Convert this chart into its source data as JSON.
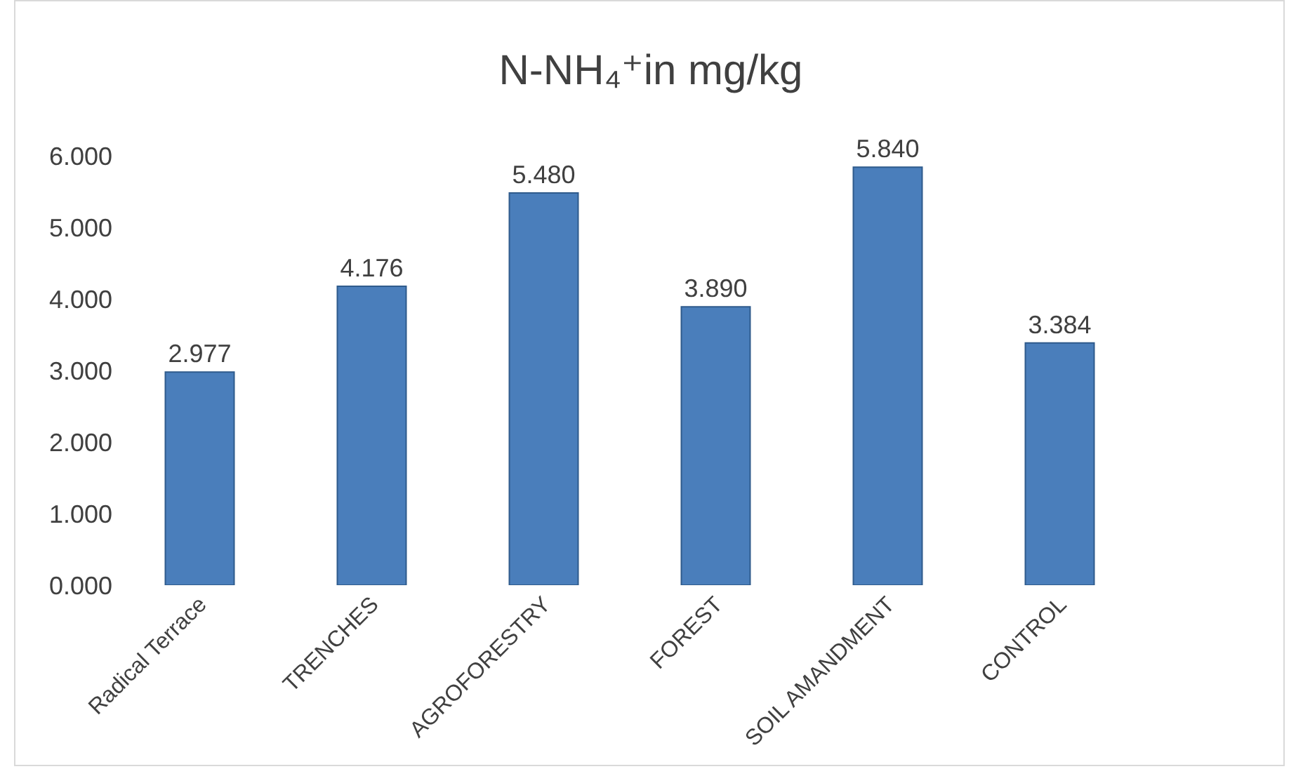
{
  "chart_data": {
    "type": "bar",
    "title": "N-NH₄⁺in mg/kg",
    "categories": [
      "Radical Terrace",
      "TRENCHES",
      "AGROFORESTRY",
      "FOREST",
      "SOIL AMANDMENT",
      "CONTROL"
    ],
    "values": [
      2.977,
      4.176,
      5.48,
      3.89,
      5.84,
      3.384
    ],
    "value_labels": [
      "2.977",
      "4.176",
      "5.480",
      "3.890",
      "5.840",
      "3.384"
    ],
    "color": "#4a7ebb",
    "ylim": [
      0,
      6
    ],
    "yticks": [
      {
        "value": 0,
        "label": "0.000"
      },
      {
        "value": 1,
        "label": "1.000"
      },
      {
        "value": 2,
        "label": "2.000"
      },
      {
        "value": 3,
        "label": "3.000"
      },
      {
        "value": 4,
        "label": "4.000"
      },
      {
        "value": 5,
        "label": "5.000"
      },
      {
        "value": 6,
        "label": "6.000"
      }
    ],
    "grid": false,
    "legend": false
  }
}
